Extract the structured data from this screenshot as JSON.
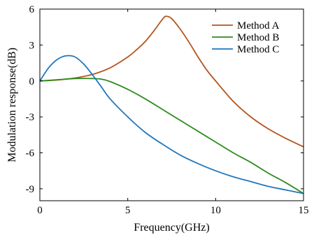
{
  "chart_data": {
    "type": "line",
    "title": "",
    "xlabel": "Frequency(GHz)",
    "ylabel": "Modulation response(dB)",
    "xlim": [
      0,
      15
    ],
    "ylim": [
      -10,
      6
    ],
    "x_ticks": [
      "0",
      "5",
      "10",
      "15"
    ],
    "y_ticks": [
      "6",
      "3",
      "0",
      "-3",
      "-6",
      "-9"
    ],
    "grid": false,
    "legend_position": "top-right",
    "series": [
      {
        "name": "Method A",
        "color": "#b5541e",
        "x": [
          0,
          1,
          2,
          3,
          4,
          5,
          5.5,
          6,
          6.5,
          7,
          7.2,
          7.5,
          8,
          8.5,
          9,
          9.5,
          10,
          11,
          12,
          13,
          14,
          15
        ],
        "y": [
          0,
          0.08,
          0.25,
          0.55,
          1.1,
          2.0,
          2.6,
          3.3,
          4.2,
          5.2,
          5.4,
          5.2,
          4.3,
          3.2,
          2.0,
          0.9,
          0.0,
          -1.7,
          -3.0,
          -4.0,
          -4.8,
          -5.5
        ]
      },
      {
        "name": "Method B",
        "color": "#2e8b1e",
        "x": [
          0,
          1,
          2,
          3,
          3.5,
          4,
          5,
          6,
          7,
          8,
          9,
          10,
          11,
          12,
          13,
          14,
          15
        ],
        "y": [
          0,
          0.1,
          0.2,
          0.2,
          0.15,
          -0.05,
          -0.7,
          -1.5,
          -2.4,
          -3.3,
          -4.2,
          -5.1,
          -6.0,
          -6.8,
          -7.7,
          -8.5,
          -9.4
        ]
      },
      {
        "name": "Method C",
        "color": "#1f77bf",
        "x": [
          0,
          0.5,
          1,
          1.5,
          2,
          2.5,
          3,
          3.5,
          4,
          5,
          6,
          7,
          8,
          9,
          10,
          11,
          12,
          13,
          14,
          15
        ],
        "y": [
          0,
          1.1,
          1.8,
          2.1,
          2.0,
          1.4,
          0.5,
          -0.5,
          -1.5,
          -3.0,
          -4.3,
          -5.3,
          -6.2,
          -6.9,
          -7.5,
          -8.0,
          -8.4,
          -8.8,
          -9.1,
          -9.4
        ]
      }
    ]
  }
}
